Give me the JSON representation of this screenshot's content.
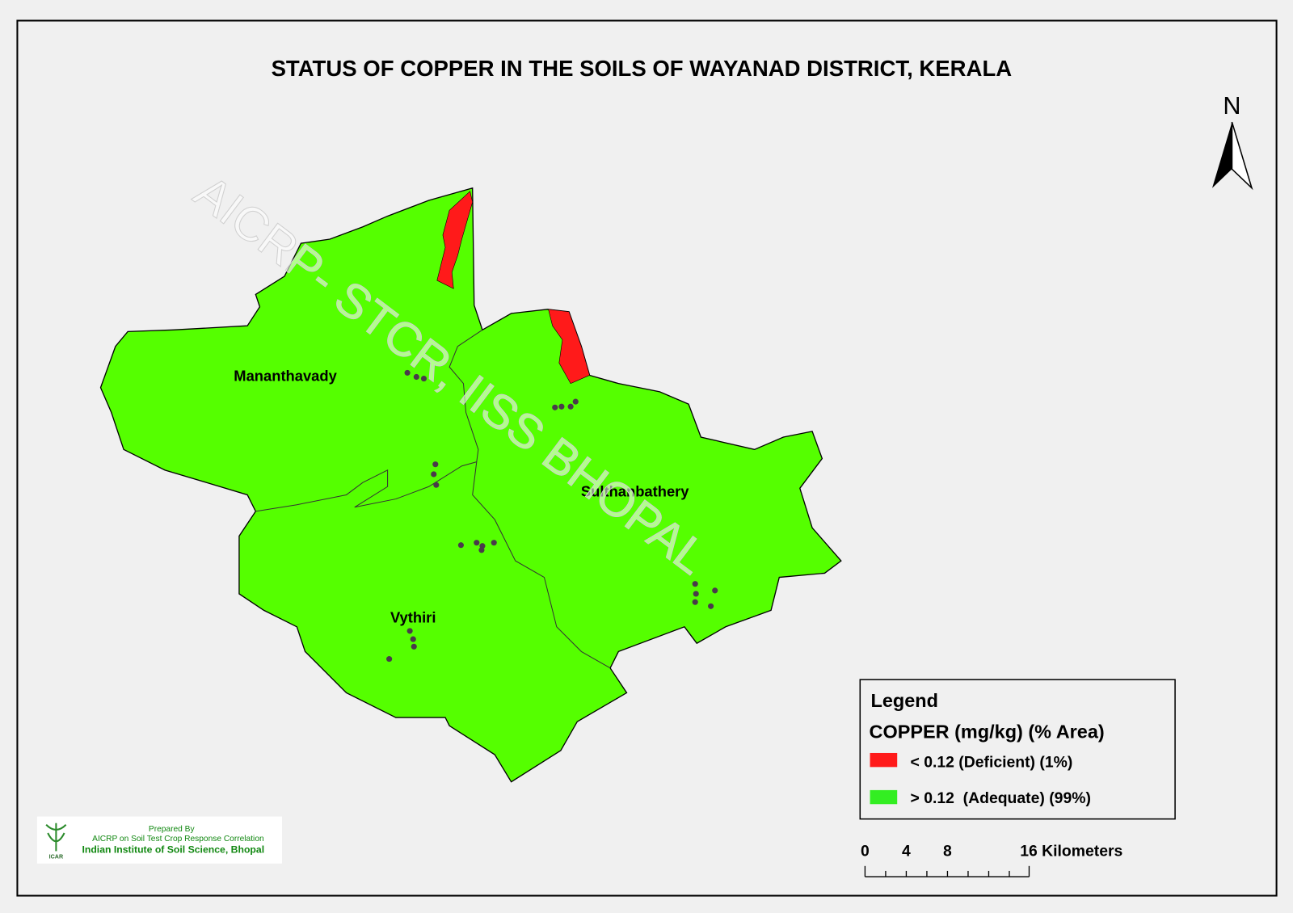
{
  "header": {
    "title": "STATUS OF COPPER  IN THE SOILS OF WAYANAD  DISTRICT, KERALA"
  },
  "north_arrow": {
    "label": "N"
  },
  "map": {
    "regions": [
      {
        "label": "Mananthavady"
      },
      {
        "label": "Sulthanbathery"
      },
      {
        "label": "Vythiri"
      }
    ],
    "watermark": "AICRP- STCR, IISS BHOPAL"
  },
  "legend": {
    "title": "Legend",
    "heading": "COPPER  (mg/kg)   (% Area)",
    "items": [
      {
        "label": "< 0.12 (Deficient) (1%)"
      },
      {
        "label": "> 0.12  (Adequate) (99%)"
      }
    ]
  },
  "scale_bar": {
    "labels": [
      "0",
      "4",
      "8",
      "16 Kilometers"
    ]
  },
  "credits": {
    "logo": "ICAR",
    "lines": [
      "Prepared By",
      "AICRP on Soil Test Crop Response Correlation",
      "Indian Institute of Soil Science, Bhopal"
    ]
  }
}
